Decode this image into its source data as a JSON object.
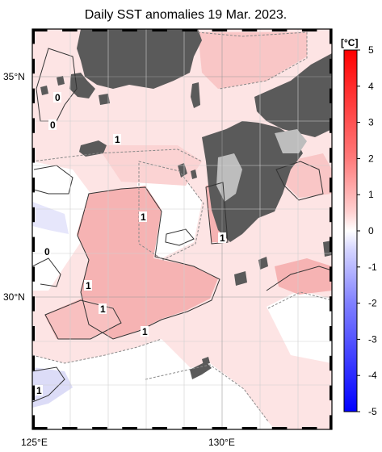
{
  "title": "Daily SST anomalies 19 Mar. 2023.",
  "map": {
    "lat_labels": [
      {
        "lat": 35,
        "text": "35°N"
      },
      {
        "lat": 30,
        "text": "30°N"
      }
    ],
    "lon_labels": [
      {
        "lon": 125,
        "text": "125°E"
      },
      {
        "lon": 130,
        "text": "130°E"
      }
    ],
    "contour_labels": [
      {
        "id": "c-0-a",
        "text": "0"
      },
      {
        "id": "c-0-b",
        "text": "0"
      },
      {
        "id": "c-1-a",
        "text": "1"
      },
      {
        "id": "c-1-b",
        "text": "1"
      },
      {
        "id": "c-1-c",
        "text": "1"
      },
      {
        "id": "c-0-c",
        "text": "0"
      },
      {
        "id": "c-1-d",
        "text": "1"
      },
      {
        "id": "c-1-e",
        "text": "1"
      },
      {
        "id": "c-1-f",
        "text": "1"
      },
      {
        "id": "c-1-g",
        "text": "1"
      }
    ],
    "land_color": "#5a5a5a",
    "ice_color": "#bdbdbd"
  },
  "colorbar": {
    "unit": "[°C]",
    "min": -5,
    "max": 5,
    "ticks": [
      5,
      4,
      3,
      2,
      1,
      0,
      -1,
      -2,
      -3,
      -4,
      -5
    ],
    "positive_color": "#ff0000",
    "negative_color": "#0000ff"
  }
}
